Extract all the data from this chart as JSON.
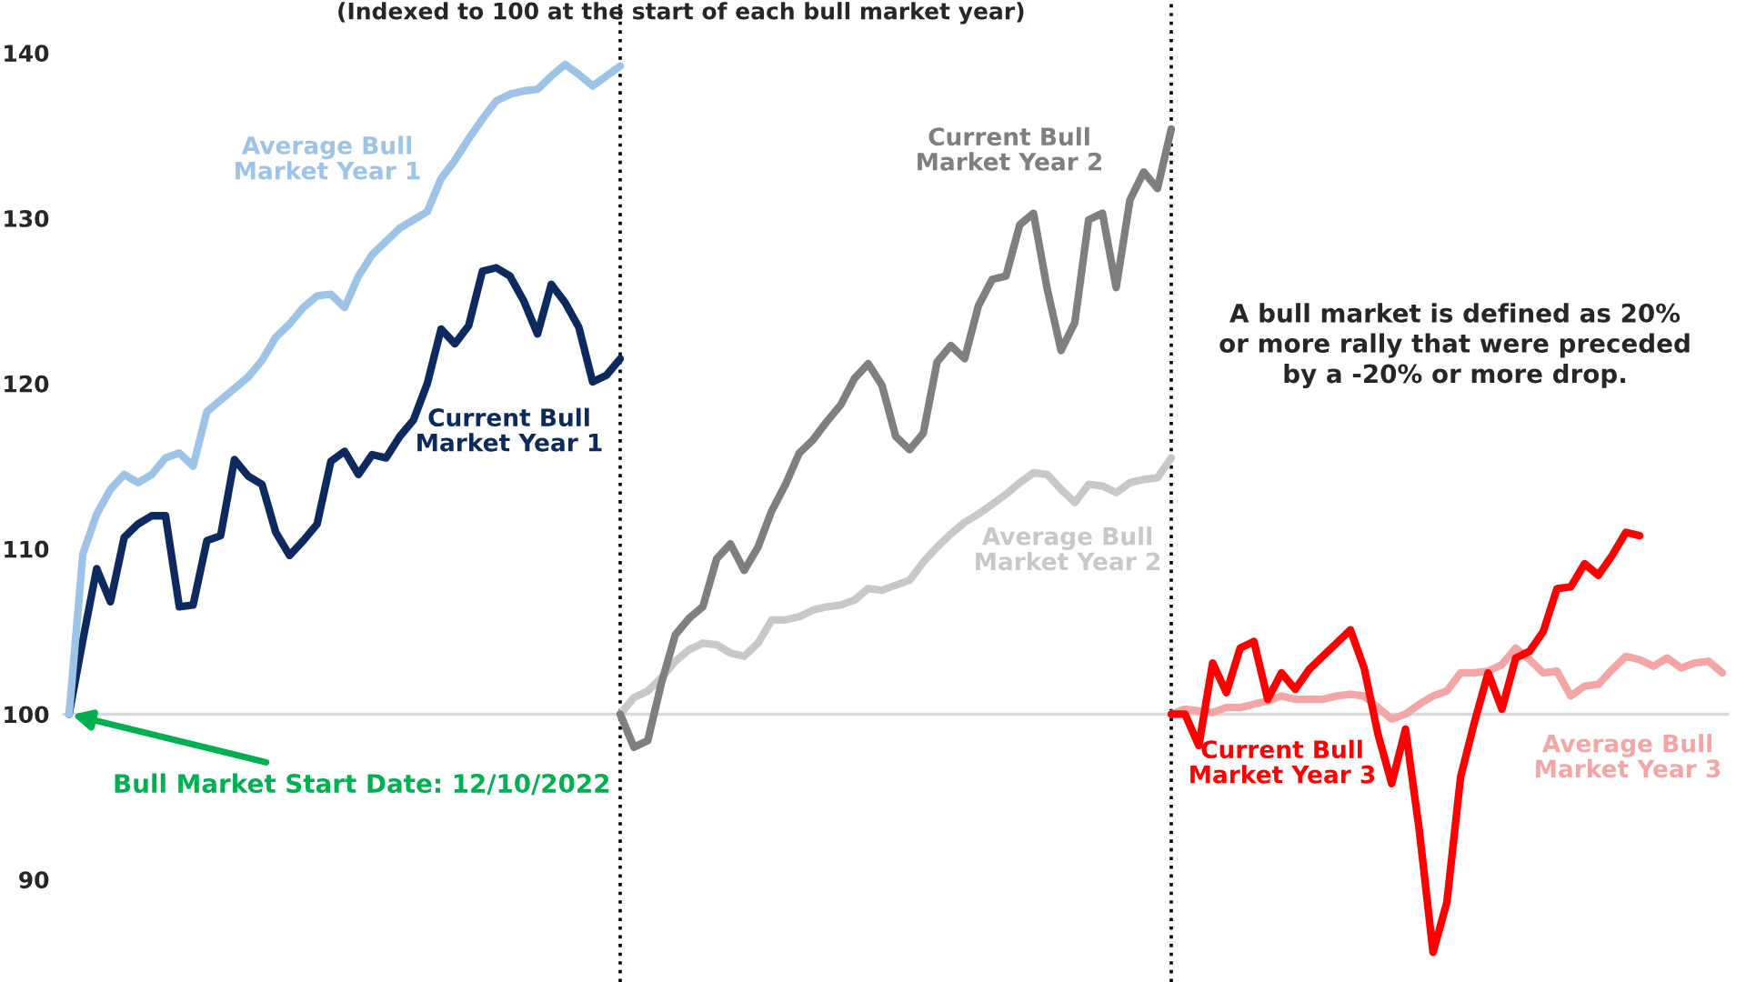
{
  "chart_data": {
    "type": "line",
    "subtitle": "(Indexed to 100 at the start of each bull market year)",
    "categories": [
      null,
      null,
      null,
      null,
      null,
      null,
      null,
      null,
      null,
      null,
      null,
      null,
      null,
      null,
      null,
      null,
      null,
      null,
      null,
      null,
      null,
      null,
      null,
      null,
      null,
      null,
      null,
      null,
      null,
      null,
      null,
      null,
      null,
      null,
      null,
      null,
      null,
      null,
      null,
      null,
      null,
      null,
      null,
      null,
      null,
      null,
      null,
      null,
      null,
      null,
      null,
      null,
      null,
      null,
      null,
      null,
      null,
      null,
      null,
      null,
      null,
      null,
      null,
      null,
      null,
      null,
      null,
      null,
      null,
      null,
      null,
      null,
      null,
      null,
      null,
      null,
      null,
      null,
      null,
      null,
      null,
      null,
      null,
      null,
      null,
      null,
      null,
      null,
      null,
      null,
      null,
      null,
      null,
      null,
      null,
      null,
      null,
      null,
      null,
      null,
      null,
      null,
      null,
      null,
      null,
      null,
      null,
      null,
      null,
      null,
      null,
      null,
      null,
      null,
      null,
      null,
      null,
      null,
      null,
      null,
      null
    ],
    "ylim": [
      83.8,
      143.2
    ],
    "yticks": [
      90,
      100,
      110,
      120,
      130,
      140
    ],
    "tick_labels": "y",
    "grid": false,
    "line_style": "solid",
    "ref_lines": [
      {
        "axis": "y",
        "value": 100,
        "color": "#d9d9d9",
        "line_style": "solid"
      }
    ],
    "annotations": [
      "Bull Market Start Date: 12/10/2022",
      "A bull market is defined as 20%\nor more rally that were preceded\nby a -20% or more drop."
    ],
    "series": [
      {
        "name": "Average Bull\nMarket Year 1",
        "color": "#9dc3e6",
        "values": [
          100,
          109.7,
          112.1,
          113.6,
          114.5,
          114.0,
          114.5,
          115.5,
          115.8,
          115.0,
          118.3,
          119.0,
          119.7,
          120.4,
          121.4,
          122.8,
          123.6,
          124.6,
          125.3,
          125.4,
          124.6,
          126.5,
          127.8,
          128.6,
          129.4,
          129.9,
          130.4,
          132.4,
          133.5,
          134.8,
          136.0,
          137.1,
          137.5,
          137.7,
          137.8,
          138.6,
          139.3,
          138.7,
          138.0,
          138.6,
          139.2,
          null,
          null,
          null,
          null,
          null,
          null,
          null,
          null,
          null,
          null,
          null,
          null,
          null,
          null,
          null,
          null,
          null,
          null,
          null,
          null,
          null,
          null,
          null,
          null,
          null,
          null,
          null,
          null,
          null,
          null,
          null,
          null,
          null,
          null,
          null,
          null,
          null,
          null,
          null,
          null,
          null,
          null,
          null,
          null,
          null,
          null,
          null,
          null,
          null,
          null,
          null,
          null,
          null,
          null,
          null,
          null,
          null,
          null,
          null,
          null,
          null,
          null,
          null,
          null,
          null,
          null,
          null,
          null,
          null,
          null,
          null,
          null,
          null,
          null,
          null,
          null,
          null,
          null,
          null,
          null
        ]
      },
      {
        "name": "Current Bull\nMarket Year 1",
        "color": "#0d2a5e",
        "values": [
          100,
          104.5,
          108.8,
          106.8,
          110.7,
          111.5,
          112.0,
          112.0,
          106.5,
          106.6,
          110.5,
          110.8,
          115.4,
          114.4,
          113.9,
          111.0,
          109.6,
          110.5,
          111.5,
          115.3,
          115.9,
          114.5,
          115.7,
          115.5,
          116.8,
          117.8,
          120.0,
          123.3,
          122.4,
          123.5,
          126.8,
          127.0,
          126.5,
          125.0,
          123.0,
          126.0,
          124.9,
          123.4,
          120.1,
          120.5,
          121.5,
          null,
          null,
          null,
          null,
          null,
          null,
          null,
          null,
          null,
          null,
          null,
          null,
          null,
          null,
          null,
          null,
          null,
          null,
          null,
          null,
          null,
          null,
          null,
          null,
          null,
          null,
          null,
          null,
          null,
          null,
          null,
          null,
          null,
          null,
          null,
          null,
          null,
          null,
          null,
          null,
          null,
          null,
          null,
          null,
          null,
          null,
          null,
          null,
          null,
          null,
          null,
          null,
          null,
          null,
          null,
          null,
          null,
          null,
          null,
          null,
          null,
          null,
          null,
          null,
          null,
          null,
          null,
          null,
          null,
          null,
          null,
          null,
          null,
          null,
          null,
          null,
          null,
          null,
          null,
          null
        ]
      },
      {
        "name": "Current Bull\nMarket Year 2",
        "color": "#7f7f7f",
        "values": [
          null,
          null,
          null,
          null,
          null,
          null,
          null,
          null,
          null,
          null,
          null,
          null,
          null,
          null,
          null,
          null,
          null,
          null,
          null,
          null,
          null,
          null,
          null,
          null,
          null,
          null,
          null,
          null,
          null,
          null,
          null,
          null,
          null,
          null,
          null,
          null,
          null,
          null,
          null,
          null,
          100,
          98.0,
          98.4,
          101.9,
          104.8,
          105.8,
          106.5,
          109.4,
          110.3,
          108.7,
          110.1,
          112.3,
          113.9,
          115.8,
          116.6,
          117.7,
          118.7,
          120.3,
          121.2,
          119.9,
          116.8,
          116.0,
          117.0,
          121.3,
          122.3,
          121.5,
          124.7,
          126.3,
          126.5,
          129.6,
          130.3,
          125.7,
          122.0,
          123.7,
          129.9,
          130.3,
          125.8,
          131.1,
          132.8,
          131.8,
          135.4,
          null,
          null,
          null,
          null,
          null,
          null,
          null,
          null,
          null,
          null,
          null,
          null,
          null,
          null,
          null,
          null,
          null,
          null,
          null,
          null,
          null,
          null,
          null,
          null,
          null,
          null,
          null,
          null,
          null,
          null,
          null,
          null,
          null,
          null,
          null,
          null,
          null,
          null,
          null,
          null
        ]
      },
      {
        "name": "Average Bull\nMarket Year 2",
        "color": "#c8c8c8",
        "values": [
          null,
          null,
          null,
          null,
          null,
          null,
          null,
          null,
          null,
          null,
          null,
          null,
          null,
          null,
          null,
          null,
          null,
          null,
          null,
          null,
          null,
          null,
          null,
          null,
          null,
          null,
          null,
          null,
          null,
          null,
          null,
          null,
          null,
          null,
          null,
          null,
          null,
          null,
          null,
          null,
          100,
          101.0,
          101.4,
          102.2,
          103.2,
          103.9,
          104.3,
          104.2,
          103.7,
          103.5,
          104.3,
          105.7,
          105.7,
          105.9,
          106.3,
          106.5,
          106.6,
          106.9,
          107.6,
          107.5,
          107.8,
          108.1,
          109.2,
          110.1,
          110.9,
          111.6,
          112.1,
          112.7,
          113.3,
          114.0,
          114.6,
          114.5,
          113.6,
          112.8,
          113.9,
          113.8,
          113.4,
          114.0,
          114.2,
          114.3,
          115.5,
          null,
          null,
          null,
          null,
          null,
          null,
          null,
          null,
          null,
          null,
          null,
          null,
          null,
          null,
          null,
          null,
          null,
          null,
          null,
          null,
          null,
          null,
          null,
          null,
          null,
          null,
          null,
          null,
          null,
          null,
          null,
          null,
          null,
          null,
          null,
          null,
          null,
          null,
          null,
          null
        ]
      },
      {
        "name": "Current Bull\nMarket Year 3",
        "color": "#ff0000",
        "values": [
          null,
          null,
          null,
          null,
          null,
          null,
          null,
          null,
          null,
          null,
          null,
          null,
          null,
          null,
          null,
          null,
          null,
          null,
          null,
          null,
          null,
          null,
          null,
          null,
          null,
          null,
          null,
          null,
          null,
          null,
          null,
          null,
          null,
          null,
          null,
          null,
          null,
          null,
          null,
          null,
          null,
          null,
          null,
          null,
          null,
          null,
          null,
          null,
          null,
          null,
          null,
          null,
          null,
          null,
          null,
          null,
          null,
          null,
          null,
          null,
          null,
          null,
          null,
          null,
          null,
          null,
          null,
          null,
          null,
          null,
          null,
          null,
          null,
          null,
          null,
          null,
          null,
          null,
          null,
          null,
          100,
          100.0,
          98.1,
          103.1,
          101.3,
          104.0,
          104.4,
          100.9,
          102.5,
          101.5,
          102.7,
          103.5,
          104.3,
          105.1,
          102.8,
          98.8,
          95.8,
          99.1,
          93.0,
          85.6,
          88.6,
          96.2,
          99.5,
          102.5,
          100.3,
          103.4,
          103.8,
          105.0,
          107.6,
          107.7,
          109.1,
          108.4,
          109.6,
          111.0,
          110.8,
          null,
          null,
          null,
          null,
          null,
          null
        ]
      },
      {
        "name": "Average Bull\nMarket Year 3",
        "color": "#f4a6a6",
        "values": [
          null,
          null,
          null,
          null,
          null,
          null,
          null,
          null,
          null,
          null,
          null,
          null,
          null,
          null,
          null,
          null,
          null,
          null,
          null,
          null,
          null,
          null,
          null,
          null,
          null,
          null,
          null,
          null,
          null,
          null,
          null,
          null,
          null,
          null,
          null,
          null,
          null,
          null,
          null,
          null,
          null,
          null,
          null,
          null,
          null,
          null,
          null,
          null,
          null,
          null,
          null,
          null,
          null,
          null,
          null,
          null,
          null,
          null,
          null,
          null,
          null,
          null,
          null,
          null,
          null,
          null,
          null,
          null,
          null,
          null,
          null,
          null,
          null,
          null,
          null,
          null,
          null,
          null,
          null,
          null,
          100,
          100.3,
          100.2,
          100.1,
          100.4,
          100.4,
          100.6,
          100.8,
          101.1,
          100.9,
          100.9,
          100.9,
          101.1,
          101.2,
          101.1,
          100.4,
          99.7,
          100.0,
          100.6,
          101.1,
          101.4,
          102.5,
          102.5,
          102.6,
          103.0,
          104.0,
          103.3,
          102.5,
          102.6,
          101.1,
          101.7,
          101.8,
          102.7,
          103.5,
          103.3,
          102.9,
          103.4,
          102.8,
          103.1,
          103.2,
          102.5
        ]
      }
    ]
  }
}
